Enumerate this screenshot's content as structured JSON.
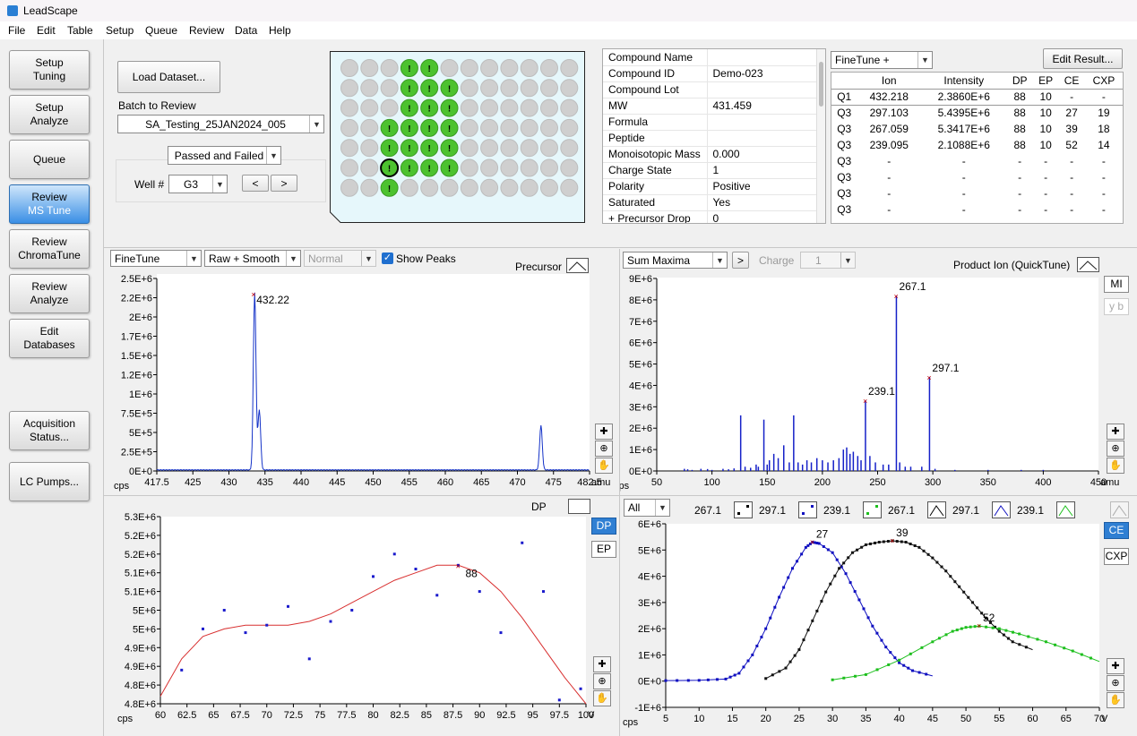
{
  "app": {
    "title": "LeadScape"
  },
  "menu": [
    "File",
    "Edit",
    "Table",
    "Setup",
    "Queue",
    "Review",
    "Data",
    "Help"
  ],
  "sidebar": [
    {
      "l1": "Setup",
      "l2": "Tuning",
      "active": false
    },
    {
      "l1": "Setup",
      "l2": "Analyze",
      "active": false
    },
    {
      "l1": "Queue",
      "l2": "",
      "active": false
    },
    {
      "l1": "Review",
      "l2": "MS Tune",
      "active": true
    },
    {
      "l1": "Review",
      "l2": "ChromaTune",
      "active": false
    },
    {
      "l1": "Review",
      "l2": "Analyze",
      "active": false
    },
    {
      "l1": "Edit",
      "l2": "Databases",
      "active": false
    },
    {
      "l1": "Acquisition",
      "l2": "Status...",
      "active": false
    },
    {
      "l1": "LC Pumps...",
      "l2": "",
      "active": false
    }
  ],
  "dataset": {
    "load_label": "Load Dataset...",
    "batch_label": "Batch to Review",
    "batch_value": "SA_Testing_25JAN2024_005",
    "filter_value": "Passed and Failed",
    "well_label": "Well #",
    "well_value": "G3",
    "prev": "<",
    "next": ">"
  },
  "plate": {
    "rows": 7,
    "cols": 12,
    "passed": [
      "A4",
      "A5",
      "B4",
      "B5",
      "B6",
      "C4",
      "C5",
      "C6",
      "D3",
      "D4",
      "D5",
      "D6",
      "E3",
      "E4",
      "E5",
      "E6",
      "F3",
      "F4",
      "F5",
      "F6",
      "G3"
    ],
    "selected": "F3",
    "mark": "!"
  },
  "properties": [
    {
      "k": "Compound Name",
      "v": ""
    },
    {
      "k": "Compound ID",
      "v": "Demo-023"
    },
    {
      "k": "Compound Lot",
      "v": ""
    },
    {
      "k": "MW",
      "v": "431.459"
    },
    {
      "k": "Formula",
      "v": ""
    },
    {
      "k": "Peptide",
      "v": ""
    },
    {
      "k": "Monoisotopic Mass",
      "v": "0.000"
    },
    {
      "k": "Charge State",
      "v": "1"
    },
    {
      "k": "Polarity",
      "v": "Positive"
    },
    {
      "k": "Saturated",
      "v": "Yes"
    },
    {
      "k": "+ Precursor Drop",
      "v": "0"
    }
  ],
  "results": {
    "mode": "FineTune +",
    "edit_label": "Edit Result...",
    "headers": [
      "",
      "Ion",
      "Intensity",
      "DP",
      "EP",
      "CE",
      "CXP"
    ],
    "rows": [
      [
        "Q1",
        "432.218",
        "2.3860E+6",
        "88",
        "10",
        "-",
        "-"
      ],
      [
        "Q3",
        "297.103",
        "5.4395E+6",
        "88",
        "10",
        "27",
        "19"
      ],
      [
        "Q3",
        "267.059",
        "5.3417E+6",
        "88",
        "10",
        "39",
        "18"
      ],
      [
        "Q3",
        "239.095",
        "2.1088E+6",
        "88",
        "10",
        "52",
        "14"
      ],
      [
        "Q3",
        "-",
        "-",
        "-",
        "-",
        "-",
        "-"
      ],
      [
        "Q3",
        "-",
        "-",
        "-",
        "-",
        "-",
        "-"
      ],
      [
        "Q3",
        "-",
        "-",
        "-",
        "-",
        "-",
        "-"
      ],
      [
        "Q3",
        "-",
        "-",
        "-",
        "-",
        "-",
        "-"
      ]
    ]
  },
  "precursor_panel": {
    "mode": "FineTune",
    "smooth": "Raw + Smooth",
    "norm": "Normal",
    "show_peaks": "Show Peaks",
    "title": "Precursor",
    "peak_label": "432.22"
  },
  "product_panel": {
    "mode": "Sum Maxima",
    "go": ">",
    "charge_label": "Charge",
    "charge_value": "1",
    "title": "Product Ion (QuickTune)",
    "mi": "MI",
    "yb": "y b"
  },
  "dp_panel": {
    "title": "DP",
    "btn_dp": "DP",
    "btn_ep": "EP",
    "peak_label": "88"
  },
  "ce_panel": {
    "select": "All",
    "legend": [
      "267.1",
      "297.1",
      "239.1",
      "267.1",
      "297.1",
      "239.1"
    ],
    "btn_ce": "CE",
    "btn_cxp": "CXP"
  },
  "chart_data": [
    {
      "type": "line",
      "name": "precursor",
      "xlabel": "amu",
      "ylabel": "cps",
      "xlim": [
        417.5,
        482.5
      ],
      "ylim": [
        0,
        2500000
      ],
      "xticks": [
        "417.5",
        "425",
        "430",
        "435",
        "440",
        "445",
        "450",
        "455",
        "460",
        "465",
        "470",
        "475",
        "482.5"
      ],
      "yticks": [
        "0E+0",
        "2.5E+5",
        "5E+5",
        "7.5E+5",
        "1E+6",
        "1.2E+6",
        "1.5E+6",
        "1.7E+6",
        "2E+6",
        "2.2E+6",
        "2.5E+6"
      ],
      "peaks": [
        {
          "x": 432.2,
          "y": 2300000
        },
        {
          "x": 432.9,
          "y": 780000
        },
        {
          "x": 475.2,
          "y": 580000
        }
      ]
    },
    {
      "type": "bar",
      "name": "product",
      "xlabel": "amu",
      "ylabel": "cps",
      "xlim": [
        50,
        450
      ],
      "ylim": [
        0,
        9000000
      ],
      "xticks": [
        "50",
        "100",
        "150",
        "200",
        "250",
        "300",
        "350",
        "400",
        "450"
      ],
      "yticks": [
        "0E+0",
        "1E+6",
        "2E+6",
        "3E+6",
        "4E+6",
        "5E+6",
        "6E+6",
        "7E+6",
        "8E+6",
        "9E+6"
      ],
      "labels": [
        {
          "x": 267.1,
          "text": "267.1"
        },
        {
          "x": 239.1,
          "text": "239.1"
        },
        {
          "x": 297.1,
          "text": "297.1"
        }
      ],
      "bars": [
        [
          75,
          0.1
        ],
        [
          78,
          0.08
        ],
        [
          82,
          0.05
        ],
        [
          90,
          0.1
        ],
        [
          96,
          0.09
        ],
        [
          100,
          0.05
        ],
        [
          110,
          0.1
        ],
        [
          115,
          0.08
        ],
        [
          120,
          0.12
        ],
        [
          126,
          2.6
        ],
        [
          130,
          0.2
        ],
        [
          135,
          0.15
        ],
        [
          140,
          0.3
        ],
        [
          142,
          0.2
        ],
        [
          147,
          2.4
        ],
        [
          150,
          0.3
        ],
        [
          152,
          0.5
        ],
        [
          156,
          0.8
        ],
        [
          160,
          0.6
        ],
        [
          165,
          1.2
        ],
        [
          170,
          0.4
        ],
        [
          174,
          2.6
        ],
        [
          178,
          0.4
        ],
        [
          182,
          0.3
        ],
        [
          186,
          0.5
        ],
        [
          190,
          0.4
        ],
        [
          195,
          0.6
        ],
        [
          200,
          0.5
        ],
        [
          205,
          0.4
        ],
        [
          210,
          0.5
        ],
        [
          215,
          0.6
        ],
        [
          219,
          1.0
        ],
        [
          222,
          1.1
        ],
        [
          225,
          0.8
        ],
        [
          228,
          0.9
        ],
        [
          232,
          0.7
        ],
        [
          235,
          0.5
        ],
        [
          239,
          3.3
        ],
        [
          243,
          0.7
        ],
        [
          248,
          0.4
        ],
        [
          255,
          0.3
        ],
        [
          260,
          0.3
        ],
        [
          267,
          8.2
        ],
        [
          270,
          0.4
        ],
        [
          275,
          0.2
        ],
        [
          280,
          0.2
        ],
        [
          290,
          0.2
        ],
        [
          297,
          4.4
        ],
        [
          302,
          0.1
        ],
        [
          320,
          0.05
        ],
        [
          350,
          0.05
        ],
        [
          380,
          0.05
        ],
        [
          400,
          0.05
        ]
      ]
    },
    {
      "type": "scatter",
      "name": "dp-ramp",
      "xlabel": "V",
      "ylabel": "cps",
      "xlim": [
        60,
        100
      ],
      "ylim": [
        4800000,
        5300000
      ],
      "xticks": [
        "60",
        "62.5",
        "65",
        "67.5",
        "70",
        "72.5",
        "75",
        "77.5",
        "80",
        "82.5",
        "85",
        "87.5",
        "90",
        "92.5",
        "95",
        "97.5",
        "100"
      ],
      "yticks": [
        "4.8E+6",
        "4.8E+6",
        "4.9E+6",
        "4.9E+6",
        "5E+6",
        "5E+6",
        "5.1E+6",
        "5.1E+6",
        "5.2E+6",
        "5.2E+6",
        "5.3E+6"
      ],
      "points": [
        [
          62,
          4.89
        ],
        [
          64,
          5.0
        ],
        [
          66,
          5.05
        ],
        [
          68,
          4.99
        ],
        [
          70,
          5.01
        ],
        [
          72,
          5.06
        ],
        [
          74,
          4.92
        ],
        [
          76,
          5.02
        ],
        [
          78,
          5.05
        ],
        [
          80,
          5.14
        ],
        [
          82,
          5.2
        ],
        [
          84,
          5.16
        ],
        [
          86,
          5.09
        ],
        [
          88,
          5.17
        ],
        [
          90,
          5.1
        ],
        [
          92,
          4.99
        ],
        [
          94,
          5.23
        ],
        [
          96,
          5.1
        ],
        [
          97.5,
          4.81
        ],
        [
          99.5,
          4.84
        ]
      ],
      "fit": [
        [
          60,
          4.82
        ],
        [
          62,
          4.92
        ],
        [
          64,
          4.98
        ],
        [
          66,
          5.0
        ],
        [
          68,
          5.01
        ],
        [
          70,
          5.01
        ],
        [
          72,
          5.01
        ],
        [
          74,
          5.02
        ],
        [
          76,
          5.04
        ],
        [
          78,
          5.07
        ],
        [
          80,
          5.1
        ],
        [
          82,
          5.13
        ],
        [
          84,
          5.15
        ],
        [
          86,
          5.17
        ],
        [
          88,
          5.17
        ],
        [
          90,
          5.15
        ],
        [
          92,
          5.1
        ],
        [
          94,
          5.03
        ],
        [
          96,
          4.95
        ],
        [
          98,
          4.87
        ],
        [
          100,
          4.8
        ]
      ]
    },
    {
      "type": "line",
      "name": "ce-ramp",
      "xlabel": "V",
      "ylabel": "cps",
      "xlim": [
        5,
        70
      ],
      "ylim": [
        -1000000,
        6000000
      ],
      "xticks": [
        "5",
        "10",
        "15",
        "20",
        "25",
        "30",
        "35",
        "40",
        "45",
        "50",
        "55",
        "60",
        "65",
        "70"
      ],
      "yticks": [
        "-1E+6",
        "0E+0",
        "1E+6",
        "2E+6",
        "3E+6",
        "4E+6",
        "5E+6",
        "6E+6"
      ],
      "series": [
        {
          "name": "297.1",
          "color": "#1010c0",
          "peak": {
            "x": 27,
            "label": "27"
          },
          "points": [
            [
              5,
              0.02
            ],
            [
              10,
              0.03
            ],
            [
              14,
              0.08
            ],
            [
              16,
              0.3
            ],
            [
              18,
              1.0
            ],
            [
              20,
              2.0
            ],
            [
              22,
              3.2
            ],
            [
              24,
              4.3
            ],
            [
              26,
              5.1
            ],
            [
              27,
              5.3
            ],
            [
              28,
              5.25
            ],
            [
              30,
              4.9
            ],
            [
              32,
              4.1
            ],
            [
              34,
              3.1
            ],
            [
              36,
              2.1
            ],
            [
              38,
              1.3
            ],
            [
              40,
              0.7
            ],
            [
              42,
              0.4
            ],
            [
              45,
              0.2
            ]
          ]
        },
        {
          "name": "267.1",
          "color": "#111111",
          "peak": {
            "x": 39,
            "label": "39"
          },
          "points": [
            [
              20,
              0.1
            ],
            [
              23,
              0.5
            ],
            [
              25,
              1.2
            ],
            [
              27,
              2.3
            ],
            [
              29,
              3.4
            ],
            [
              31,
              4.3
            ],
            [
              33,
              4.9
            ],
            [
              35,
              5.2
            ],
            [
              37,
              5.3
            ],
            [
              39,
              5.35
            ],
            [
              41,
              5.3
            ],
            [
              43,
              5.1
            ],
            [
              45,
              4.7
            ],
            [
              47,
              4.2
            ],
            [
              49,
              3.6
            ],
            [
              51,
              3.0
            ],
            [
              53,
              2.4
            ],
            [
              55,
              1.9
            ],
            [
              57,
              1.5
            ],
            [
              60,
              1.2
            ]
          ]
        },
        {
          "name": "239.1",
          "color": "#1dbf1d",
          "peak": {
            "x": 52,
            "label": "52"
          },
          "points": [
            [
              30,
              0.05
            ],
            [
              35,
              0.25
            ],
            [
              40,
              0.8
            ],
            [
              45,
              1.5
            ],
            [
              48,
              1.9
            ],
            [
              50,
              2.05
            ],
            [
              52,
              2.1
            ],
            [
              55,
              2.0
            ],
            [
              58,
              1.8
            ],
            [
              62,
              1.5
            ],
            [
              66,
              1.15
            ],
            [
              70,
              0.75
            ]
          ]
        }
      ]
    }
  ]
}
